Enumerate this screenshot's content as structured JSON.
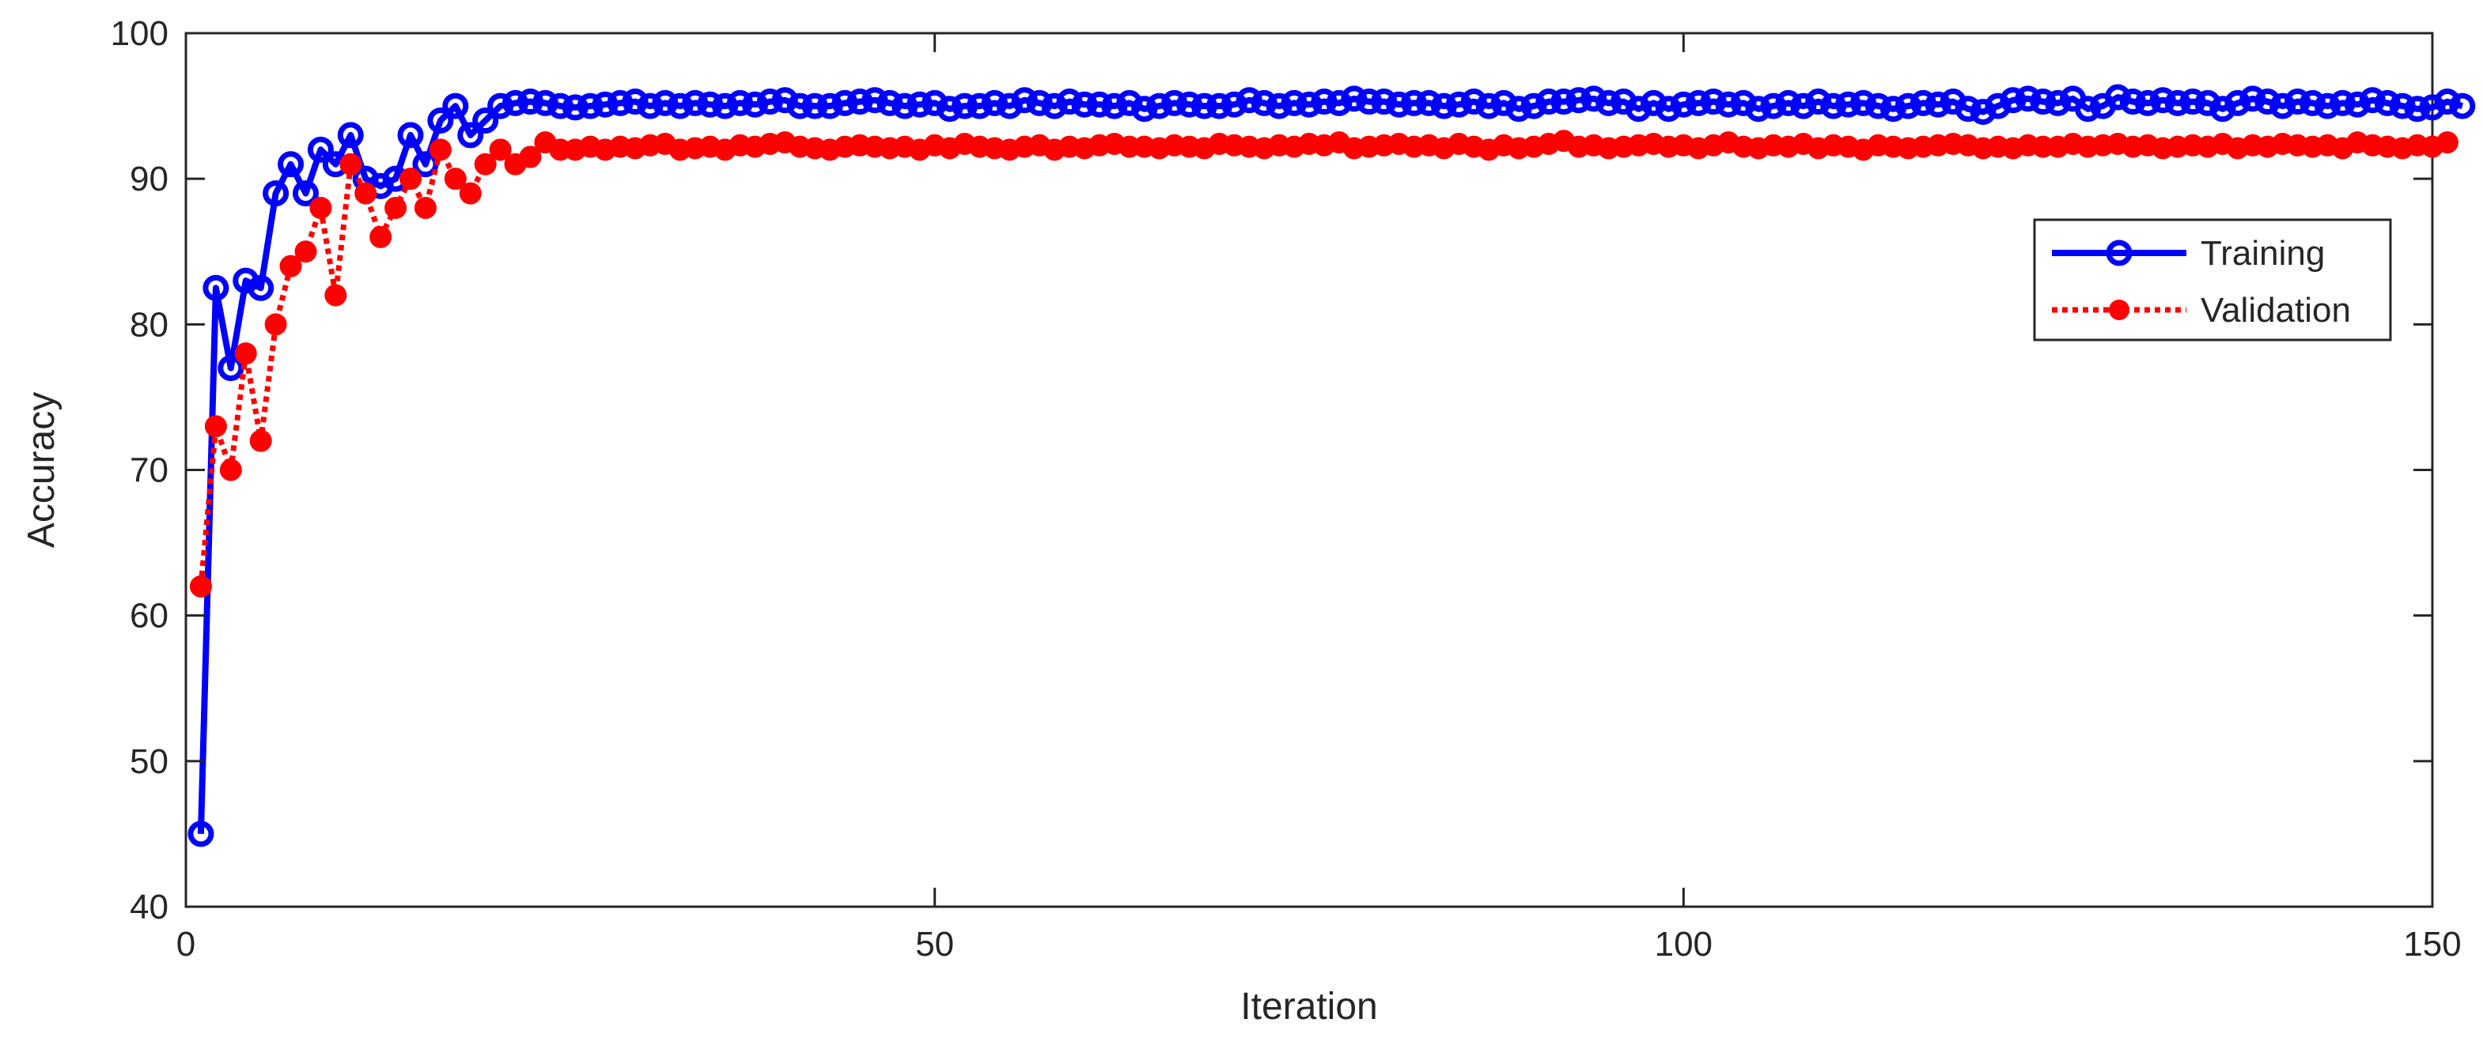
{
  "chart_data": {
    "type": "line",
    "xlabel": "Iteration",
    "ylabel": "Accuracy",
    "xlim": [
      0,
      150
    ],
    "ylim": [
      40,
      100
    ],
    "xticks": [
      "0",
      "50",
      "100",
      "150"
    ],
    "yticks": [
      "40",
      "50",
      "60",
      "70",
      "80",
      "90",
      "100"
    ],
    "xtick_values": [
      0,
      50,
      100,
      150
    ],
    "ytick_values": [
      40,
      50,
      60,
      70,
      80,
      90,
      100
    ],
    "grid": false,
    "legend_position": "right",
    "series": [
      {
        "name": "Training",
        "color": "#0000ff",
        "line_style": "solid",
        "marker": "open-circle",
        "values": [
          45,
          82.5,
          77,
          83,
          82.5,
          89,
          91,
          89,
          92,
          91,
          93,
          90,
          89.5,
          90,
          93,
          91,
          94,
          95,
          93,
          94,
          95,
          95.2,
          95.3,
          95.2,
          95,
          94.9,
          95,
          95.1,
          95.2,
          95.3,
          95,
          95.2,
          95,
          95.2,
          95.1,
          95,
          95.2,
          95.1,
          95.3,
          95.4,
          95,
          95,
          95,
          95.2,
          95.3,
          95.4,
          95.2,
          95,
          95.1,
          95.2,
          94.8,
          95,
          95,
          95.2,
          95,
          95.4,
          95.2,
          95,
          95.3,
          95.1,
          95.1,
          95,
          95.2,
          94.8,
          95,
          95.2,
          95.1,
          95,
          95,
          95.1,
          95.4,
          95.2,
          95,
          95.2,
          95.1,
          95.3,
          95.2,
          95.5,
          95.3,
          95.3,
          95.1,
          95.2,
          95.2,
          95,
          95.1,
          95.3,
          95,
          95.2,
          94.8,
          95,
          95.3,
          95.3,
          95.4,
          95.5,
          95.2,
          95.3,
          94.8,
          95.2,
          94.8,
          95.1,
          95.2,
          95.3,
          95.1,
          95.2,
          94.8,
          95,
          95.2,
          95,
          95.3,
          95,
          95.1,
          95.2,
          95,
          94.8,
          95,
          95.2,
          95.1,
          95.3,
          94.8,
          94.6,
          95,
          95.4,
          95.5,
          95.3,
          95.2,
          95.5,
          94.8,
          95,
          95.6,
          95.3,
          95.2,
          95.4,
          95.2,
          95.3,
          95.2,
          94.8,
          95.2,
          95.5,
          95.3,
          95,
          95.3,
          95.2,
          95,
          95.2,
          95.1,
          95.4,
          95.2,
          95,
          94.8,
          94.9,
          95.3,
          95
        ],
        "x_start": 1
      },
      {
        "name": "Validation",
        "color": "#ff0000",
        "line_style": "dotted",
        "marker": "filled-circle",
        "values": [
          62,
          73,
          70,
          78,
          72,
          80,
          84,
          85,
          88,
          82,
          91,
          89,
          86,
          88,
          90,
          88,
          92,
          90,
          89,
          91,
          92,
          91,
          91.5,
          92.5,
          92,
          92,
          92.2,
          92,
          92.2,
          92.1,
          92.3,
          92.4,
          92,
          92.1,
          92.2,
          92,
          92.3,
          92.2,
          92.4,
          92.5,
          92.2,
          92.1,
          92,
          92.2,
          92.3,
          92.2,
          92.1,
          92.2,
          92,
          92.3,
          92.1,
          92.4,
          92.2,
          92.1,
          92,
          92.2,
          92.3,
          92,
          92.2,
          92.1,
          92.3,
          92.4,
          92.2,
          92.2,
          92.1,
          92.3,
          92.2,
          92.1,
          92.4,
          92.3,
          92.2,
          92.1,
          92.3,
          92.2,
          92.4,
          92.3,
          92.5,
          92.1,
          92.2,
          92.3,
          92.4,
          92.2,
          92.3,
          92.1,
          92.4,
          92.2,
          92,
          92.3,
          92.1,
          92.2,
          92.4,
          92.6,
          92.2,
          92.3,
          92.1,
          92.2,
          92.3,
          92.4,
          92.2,
          92.3,
          92.1,
          92.3,
          92.5,
          92.2,
          92.1,
          92.3,
          92.2,
          92.4,
          92.1,
          92.3,
          92.2,
          92,
          92.3,
          92.2,
          92.1,
          92.2,
          92.3,
          92.4,
          92.3,
          92.1,
          92.2,
          92.1,
          92.3,
          92.2,
          92.2,
          92.4,
          92.2,
          92.3,
          92.4,
          92.2,
          92.3,
          92.1,
          92.2,
          92.3,
          92.2,
          92.4,
          92.1,
          92.3,
          92.2,
          92.4,
          92.3,
          92.2,
          92.3,
          92.1,
          92.5,
          92.3,
          92.2,
          92.1,
          92.3,
          92.2,
          92.5
        ],
        "x_start": 1
      }
    ]
  }
}
